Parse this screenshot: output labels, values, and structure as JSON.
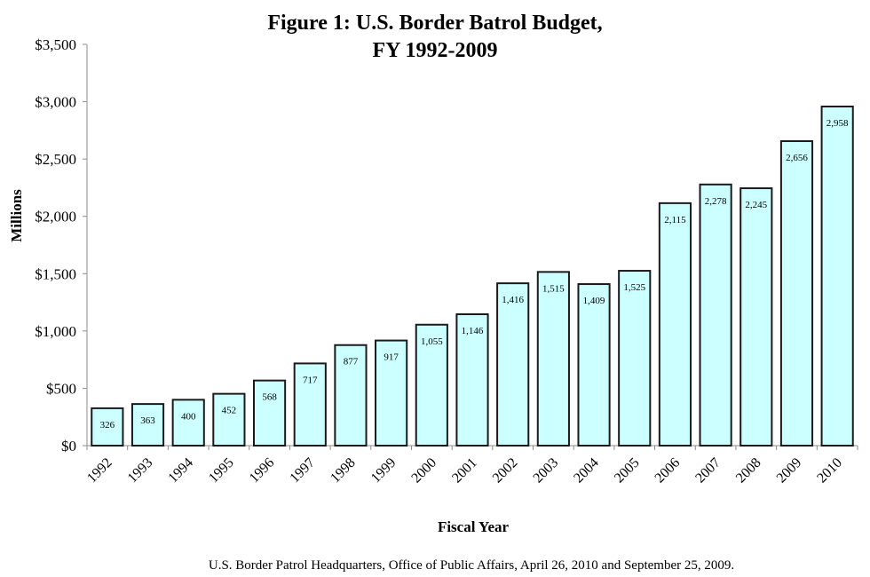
{
  "chart_data": {
    "type": "bar",
    "title_lines": [
      "Figure 1: U.S. Border Batrol Budget,",
      "FY 1992-2009"
    ],
    "xlabel": "Fiscal Year",
    "ylabel": "Millions",
    "ylim": [
      0,
      3500
    ],
    "ytick_step": 500,
    "ytick_labels": [
      "$0",
      "$500",
      "$1,000",
      "$1,500",
      "$2,000",
      "$2,500",
      "$3,000",
      "$3,500"
    ],
    "categories": [
      "1992",
      "1993",
      "1994",
      "1995",
      "1996",
      "1997",
      "1998",
      "1999",
      "2000",
      "2001",
      "2002",
      "2003",
      "2004",
      "2005",
      "2006",
      "2007",
      "2008",
      "2009",
      "2010"
    ],
    "values": [
      326,
      363,
      400,
      452,
      568,
      717,
      877,
      917,
      1055,
      1146,
      1416,
      1515,
      1409,
      1525,
      2115,
      2278,
      2245,
      2656,
      2958
    ],
    "data_labels": [
      "326",
      "363",
      "400",
      "452",
      "568",
      "717",
      "877",
      "917",
      "1,055",
      "1,146",
      "1,416",
      "1,515",
      "1,409",
      "1,525",
      "2,115",
      "2,278",
      "2,245",
      "2,656",
      "2,958"
    ],
    "grid": false,
    "legend": "none",
    "bar_color": "#ccffff",
    "bar_outline_color": "#1a1a1a",
    "source_note": "U.S. Border Patrol Headquarters, Office of Public Affairs, April 26, 2010 and September 25, 2009."
  }
}
